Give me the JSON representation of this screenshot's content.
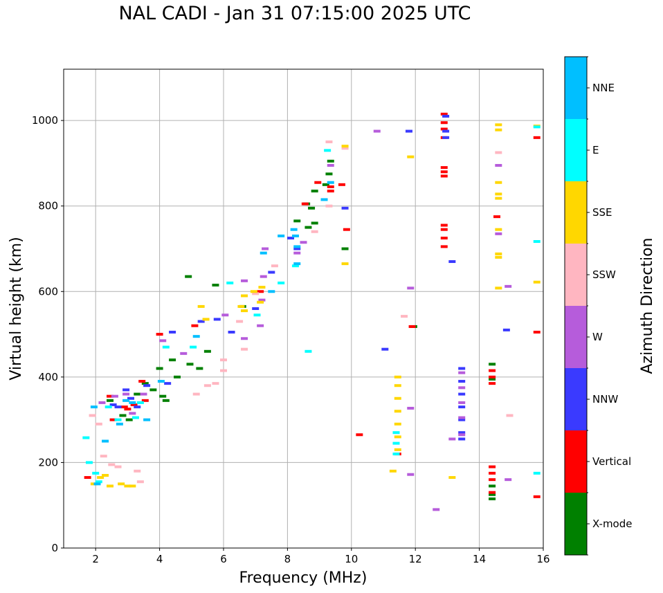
{
  "chart_data": {
    "type": "scatter",
    "title": "NAL CADI - Jan 31 07:15:00 2025 UTC",
    "xlabel": "Frequency (MHz)",
    "ylabel": "Virtual height (km)",
    "xlim": [
      1,
      16
    ],
    "ylim": [
      0,
      1120
    ],
    "xticks": [
      2,
      4,
      6,
      8,
      10,
      12,
      14,
      16
    ],
    "yticks": [
      0,
      200,
      400,
      600,
      800,
      1000
    ],
    "grid": true,
    "colorbar": {
      "label": "Azimuth Direction",
      "categories": [
        "X-mode",
        "Vertical",
        "NNW",
        "W",
        "SSW",
        "SSE",
        "E",
        "NNE"
      ],
      "colors": [
        "#008000",
        "#ff0000",
        "#3a3aff",
        "#b65cdb",
        "#ffb6c1",
        "#ffd700",
        "#00ffff",
        "#00bfff"
      ]
    },
    "series": [
      {
        "name": "X-mode",
        "points": [
          [
            2.45,
            345
          ],
          [
            2.85,
            310
          ],
          [
            3.05,
            300
          ],
          [
            3.3,
            360
          ],
          [
            3.55,
            385
          ],
          [
            3.8,
            370
          ],
          [
            4.0,
            420
          ],
          [
            4.1,
            355
          ],
          [
            4.2,
            345
          ],
          [
            4.4,
            440
          ],
          [
            4.55,
            400
          ],
          [
            4.9,
            635
          ],
          [
            4.95,
            430
          ],
          [
            5.25,
            420
          ],
          [
            5.5,
            460
          ],
          [
            5.75,
            615
          ],
          [
            6.6,
            565
          ],
          [
            8.3,
            765
          ],
          [
            8.6,
            805
          ],
          [
            8.65,
            750
          ],
          [
            8.75,
            795
          ],
          [
            8.85,
            835
          ],
          [
            8.85,
            760
          ],
          [
            9.2,
            850
          ],
          [
            9.3,
            875
          ],
          [
            9.35,
            905
          ],
          [
            9.8,
            700
          ],
          [
            11.95,
            518
          ],
          [
            14.4,
            430
          ],
          [
            14.4,
            395
          ],
          [
            14.4,
            145
          ],
          [
            14.4,
            125
          ],
          [
            14.4,
            115
          ]
        ]
      },
      {
        "name": "Vertical",
        "points": [
          [
            1.75,
            165
          ],
          [
            2.45,
            355
          ],
          [
            2.55,
            300
          ],
          [
            2.9,
            330
          ],
          [
            3.0,
            325
          ],
          [
            3.2,
            335
          ],
          [
            3.45,
            390
          ],
          [
            3.55,
            345
          ],
          [
            4.0,
            500
          ],
          [
            5.1,
            520
          ],
          [
            7.15,
            600
          ],
          [
            8.55,
            805
          ],
          [
            8.95,
            855
          ],
          [
            9.35,
            845
          ],
          [
            9.35,
            835
          ],
          [
            9.7,
            850
          ],
          [
            9.85,
            745
          ],
          [
            10.25,
            265
          ],
          [
            11.45,
            220
          ],
          [
            11.9,
            518
          ],
          [
            12.9,
            1015
          ],
          [
            12.9,
            995
          ],
          [
            12.9,
            980
          ],
          [
            12.9,
            960
          ],
          [
            12.9,
            890
          ],
          [
            12.9,
            880
          ],
          [
            12.9,
            870
          ],
          [
            12.9,
            755
          ],
          [
            12.9,
            745
          ],
          [
            12.9,
            725
          ],
          [
            12.9,
            705
          ],
          [
            14.4,
            415
          ],
          [
            14.4,
            400
          ],
          [
            14.4,
            385
          ],
          [
            14.4,
            190
          ],
          [
            14.4,
            175
          ],
          [
            14.4,
            160
          ],
          [
            14.4,
            130
          ],
          [
            14.55,
            775
          ],
          [
            15.8,
            960
          ],
          [
            15.8,
            505
          ],
          [
            15.8,
            120
          ]
        ]
      },
      {
        "name": "NNW",
        "points": [
          [
            2.55,
            335
          ],
          [
            2.7,
            330
          ],
          [
            2.95,
            370
          ],
          [
            3.1,
            350
          ],
          [
            3.3,
            330
          ],
          [
            3.6,
            380
          ],
          [
            4.25,
            385
          ],
          [
            4.4,
            505
          ],
          [
            5.3,
            530
          ],
          [
            5.8,
            535
          ],
          [
            6.25,
            505
          ],
          [
            7.0,
            560
          ],
          [
            7.5,
            645
          ],
          [
            8.1,
            725
          ],
          [
            8.3,
            700
          ],
          [
            9.8,
            795
          ],
          [
            11.05,
            465
          ],
          [
            11.8,
            975
          ],
          [
            12.95,
            1010
          ],
          [
            12.95,
            975
          ],
          [
            12.95,
            960
          ],
          [
            13.15,
            670
          ],
          [
            13.45,
            420
          ],
          [
            13.45,
            390
          ],
          [
            13.45,
            360
          ],
          [
            13.45,
            330
          ],
          [
            13.45,
            300
          ],
          [
            13.45,
            270
          ],
          [
            13.45,
            255
          ],
          [
            14.85,
            510
          ]
        ]
      },
      {
        "name": "W",
        "points": [
          [
            2.2,
            340
          ],
          [
            2.6,
            355
          ],
          [
            2.95,
            360
          ],
          [
            3.15,
            315
          ],
          [
            3.5,
            360
          ],
          [
            4.1,
            485
          ],
          [
            4.75,
            455
          ],
          [
            6.05,
            545
          ],
          [
            6.65,
            625
          ],
          [
            6.65,
            490
          ],
          [
            7.15,
            520
          ],
          [
            7.2,
            580
          ],
          [
            7.25,
            635
          ],
          [
            7.3,
            700
          ],
          [
            8.3,
            690
          ],
          [
            8.5,
            715
          ],
          [
            9.35,
            895
          ],
          [
            10.8,
            975
          ],
          [
            11.85,
            608
          ],
          [
            11.85,
            327
          ],
          [
            11.85,
            172
          ],
          [
            12.65,
            90
          ],
          [
            13.15,
            255
          ],
          [
            13.45,
            410
          ],
          [
            13.45,
            375
          ],
          [
            13.45,
            340
          ],
          [
            13.45,
            305
          ],
          [
            13.45,
            265
          ],
          [
            14.6,
            895
          ],
          [
            14.6,
            735
          ],
          [
            14.9,
            612
          ],
          [
            14.9,
            160
          ]
        ]
      },
      {
        "name": "SSW",
        "points": [
          [
            1.9,
            310
          ],
          [
            2.1,
            290
          ],
          [
            2.25,
            215
          ],
          [
            2.5,
            195
          ],
          [
            2.7,
            190
          ],
          [
            3.3,
            180
          ],
          [
            3.4,
            155
          ],
          [
            5.15,
            360
          ],
          [
            5.5,
            380
          ],
          [
            5.75,
            385
          ],
          [
            6.0,
            440
          ],
          [
            6.0,
            415
          ],
          [
            6.5,
            530
          ],
          [
            6.65,
            465
          ],
          [
            7.0,
            595
          ],
          [
            7.6,
            660
          ],
          [
            8.85,
            740
          ],
          [
            9.3,
            950
          ],
          [
            9.3,
            800
          ],
          [
            9.8,
            935
          ],
          [
            11.65,
            542
          ],
          [
            14.6,
            925
          ],
          [
            14.95,
            310
          ]
        ]
      },
      {
        "name": "SSE",
        "points": [
          [
            1.95,
            150
          ],
          [
            2.15,
            165
          ],
          [
            2.3,
            170
          ],
          [
            2.45,
            145
          ],
          [
            2.8,
            150
          ],
          [
            3.0,
            145
          ],
          [
            3.15,
            145
          ],
          [
            5.3,
            565
          ],
          [
            5.45,
            535
          ],
          [
            6.55,
            565
          ],
          [
            6.65,
            555
          ],
          [
            6.65,
            590
          ],
          [
            6.95,
            600
          ],
          [
            7.15,
            575
          ],
          [
            7.2,
            610
          ],
          [
            9.8,
            940
          ],
          [
            9.8,
            665
          ],
          [
            11.45,
            400
          ],
          [
            11.45,
            380
          ],
          [
            11.45,
            350
          ],
          [
            11.45,
            320
          ],
          [
            11.45,
            290
          ],
          [
            11.45,
            260
          ],
          [
            11.45,
            230
          ],
          [
            11.3,
            180
          ],
          [
            11.85,
            915
          ],
          [
            13.15,
            165
          ],
          [
            14.6,
            990
          ],
          [
            14.6,
            978
          ],
          [
            14.6,
            855
          ],
          [
            14.6,
            828
          ],
          [
            14.6,
            818
          ],
          [
            14.6,
            745
          ],
          [
            14.6,
            688
          ],
          [
            14.6,
            680
          ],
          [
            14.6,
            608
          ],
          [
            15.8,
            987
          ],
          [
            15.8,
            622
          ]
        ]
      },
      {
        "name": "E",
        "points": [
          [
            1.7,
            258
          ],
          [
            1.8,
            200
          ],
          [
            2.0,
            175
          ],
          [
            2.1,
            155
          ],
          [
            2.4,
            330
          ],
          [
            2.7,
            300
          ],
          [
            3.25,
            305
          ],
          [
            3.4,
            340
          ],
          [
            4.2,
            470
          ],
          [
            5.05,
            470
          ],
          [
            6.2,
            620
          ],
          [
            7.05,
            545
          ],
          [
            7.8,
            620
          ],
          [
            8.25,
            660
          ],
          [
            8.65,
            460
          ],
          [
            9.25,
            930
          ],
          [
            11.4,
            270
          ],
          [
            11.4,
            245
          ],
          [
            11.4,
            220
          ],
          [
            15.8,
            985
          ],
          [
            15.8,
            717
          ],
          [
            15.8,
            175
          ]
        ]
      },
      {
        "name": "NNE",
        "points": [
          [
            1.95,
            330
          ],
          [
            2.05,
            150
          ],
          [
            2.3,
            250
          ],
          [
            2.75,
            290
          ],
          [
            2.95,
            345
          ],
          [
            3.15,
            340
          ],
          [
            3.6,
            300
          ],
          [
            4.05,
            390
          ],
          [
            5.15,
            495
          ],
          [
            7.25,
            690
          ],
          [
            7.5,
            600
          ],
          [
            7.8,
            730
          ],
          [
            8.2,
            745
          ],
          [
            8.25,
            730
          ],
          [
            8.3,
            705
          ],
          [
            8.3,
            665
          ],
          [
            9.15,
            815
          ],
          [
            9.35,
            855
          ]
        ]
      }
    ]
  }
}
